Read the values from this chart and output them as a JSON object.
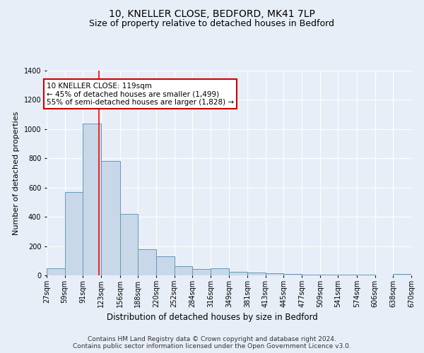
{
  "title": "10, KNELLER CLOSE, BEDFORD, MK41 7LP",
  "subtitle": "Size of property relative to detached houses in Bedford",
  "xlabel": "Distribution of detached houses by size in Bedford",
  "ylabel": "Number of detached properties",
  "bar_color": "#c8d8e8",
  "bar_edge_color": "#6699bb",
  "background_color": "#e8eef8",
  "grid_color": "#ffffff",
  "red_line_x": 119,
  "bin_edges": [
    27,
    59,
    91,
    123,
    156,
    188,
    220,
    252,
    284,
    316,
    349,
    381,
    413,
    445,
    477,
    509,
    541,
    574,
    606,
    638,
    670
  ],
  "bar_heights": [
    47,
    570,
    1040,
    780,
    420,
    180,
    130,
    65,
    45,
    50,
    25,
    20,
    15,
    10,
    5,
    5,
    3,
    3,
    2,
    10
  ],
  "ylim": [
    0,
    1400
  ],
  "yticks": [
    0,
    200,
    400,
    600,
    800,
    1000,
    1200,
    1400
  ],
  "annotation_text": "10 KNELLER CLOSE: 119sqm\n← 45% of detached houses are smaller (1,499)\n55% of semi-detached houses are larger (1,828) →",
  "annotation_box_color": "#ffffff",
  "annotation_border_color": "#cc0000",
  "footer_text": "Contains HM Land Registry data © Crown copyright and database right 2024.\nContains public sector information licensed under the Open Government Licence v3.0.",
  "title_fontsize": 10,
  "subtitle_fontsize": 9,
  "ylabel_fontsize": 8,
  "xlabel_fontsize": 8.5,
  "tick_fontsize": 7,
  "annotation_fontsize": 7.5,
  "footer_fontsize": 6.5
}
